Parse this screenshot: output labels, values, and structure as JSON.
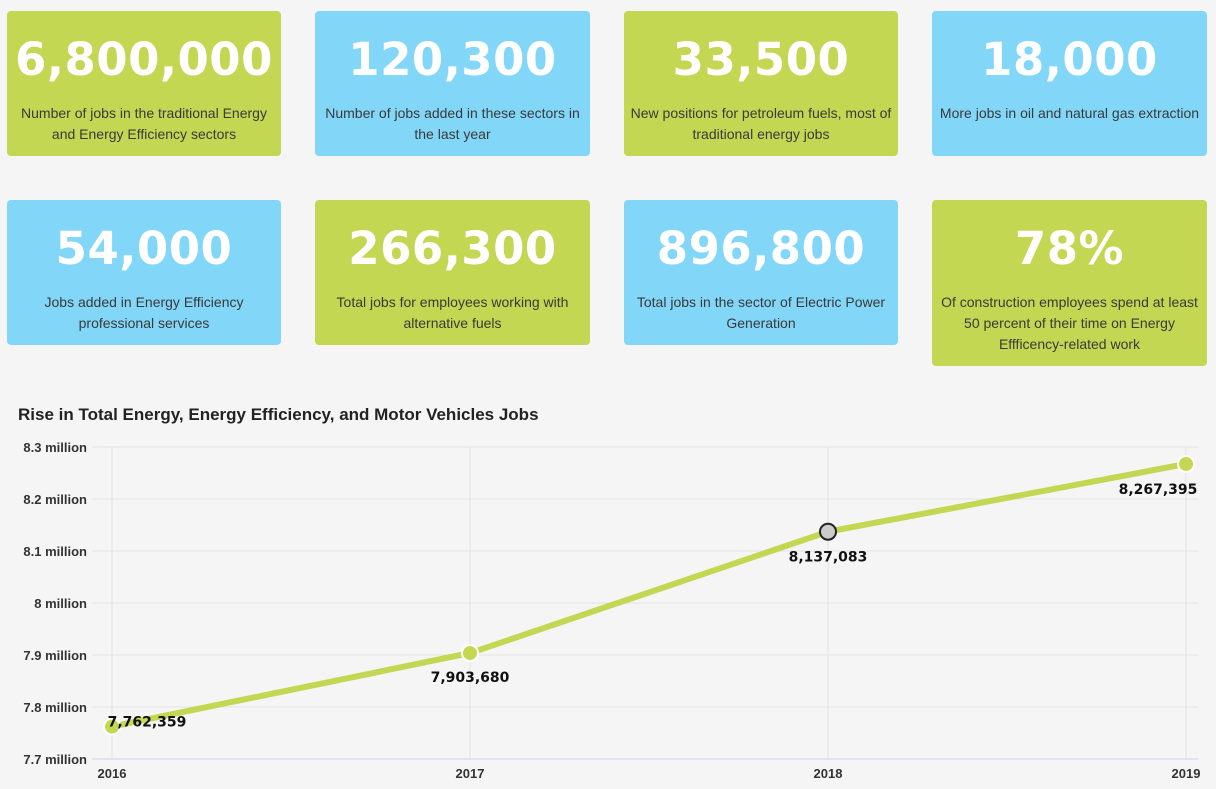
{
  "cards": [
    {
      "value": "6,800,000",
      "text": "Number of jobs in the traditional Energy and Energy Efficiency sectors",
      "color": "#c3d752"
    },
    {
      "value": "120,300",
      "text": "Number of jobs added in these sectors in the last year",
      "color": "#82d6f8"
    },
    {
      "value": "33,500",
      "text": "New positions for petroleum fuels, most of traditional energy jobs",
      "color": "#c3d752"
    },
    {
      "value": "18,000",
      "text": "More jobs in oil and natural gas extraction",
      "color": "#82d6f8"
    },
    {
      "value": "54,000",
      "text": "Jobs added in Energy Efficiency professional services",
      "color": "#82d6f8"
    },
    {
      "value": "266,300",
      "text": "Total jobs for employees working with alternative fuels",
      "color": "#c3d752"
    },
    {
      "value": "896,800",
      "text": "Total jobs in the sector of Electric Power Generation",
      "color": "#82d6f8"
    },
    {
      "value": "78%",
      "text": "Of construction employees spend at least 50 percent of their time on Energy Effficency-related work",
      "color": "#c3d752"
    }
  ],
  "chart_data": {
    "type": "line",
    "title": "Rise in Total Energy, Energy Efficiency, and Motor Vehicles Jobs",
    "xlabel": "",
    "ylabel": "",
    "x": [
      "2016",
      "2017",
      "2018",
      "2019"
    ],
    "series": [
      {
        "values": [
          7762359,
          7903680,
          8137083,
          8267395
        ],
        "color": "#c3d752"
      }
    ],
    "data_labels": [
      "7,762,359",
      "7,903,680",
      "8,137,083",
      "8,267,395"
    ],
    "highlighted_point": "2018",
    "ylim": [
      7700000,
      8300000
    ],
    "yticks": [
      {
        "value": 8300000,
        "label": "8.3 million"
      },
      {
        "value": 8200000,
        "label": "8.2 million"
      },
      {
        "value": 8100000,
        "label": "8.1 million"
      },
      {
        "value": 8000000,
        "label": "8 million"
      },
      {
        "value": 7900000,
        "label": "7.9 million"
      },
      {
        "value": 7800000,
        "label": "7.8 million"
      },
      {
        "value": 7700000,
        "label": "7.7 million"
      }
    ],
    "grid": true,
    "legend": "none"
  }
}
